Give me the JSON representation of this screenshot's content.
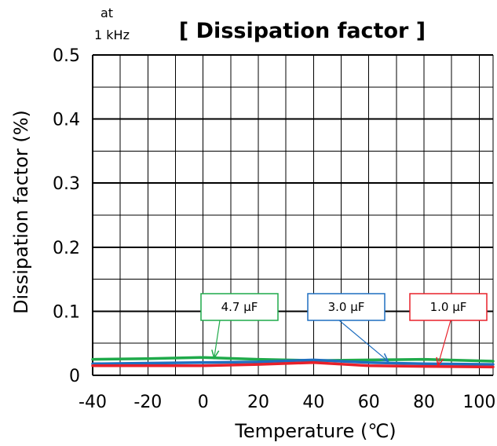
{
  "chart_data": {
    "type": "line",
    "title": "[ Dissipation factor ]",
    "condition": [
      "at",
      "1 kHz"
    ],
    "xlabel": "Temperature (℃)",
    "ylabel": "Dissipation factor (%)",
    "xlim": [
      -40,
      105
    ],
    "ylim": [
      0,
      0.5
    ],
    "xticks": [
      -40,
      -20,
      0,
      20,
      40,
      60,
      80,
      100
    ],
    "xtick_labels": [
      "-40",
      "-20",
      "0",
      "20",
      "40",
      "60",
      "80",
      "100"
    ],
    "yticks": [
      0,
      0.1,
      0.2,
      0.3,
      0.4,
      0.5
    ],
    "ytick_labels": [
      "0",
      "0.1",
      "0.2",
      "0.3",
      "0.4",
      "0.5"
    ],
    "grid": true,
    "series": [
      {
        "name": "4.7 μF",
        "color": "#1faa4a",
        "x": [
          -40,
          -20,
          0,
          20,
          40,
          60,
          80,
          105
        ],
        "y": [
          0.025,
          0.026,
          0.028,
          0.025,
          0.023,
          0.024,
          0.025,
          0.022
        ]
      },
      {
        "name": "3.0 μF",
        "color": "#1f6fc0",
        "x": [
          -40,
          -20,
          0,
          20,
          40,
          60,
          80,
          105
        ],
        "y": [
          0.018,
          0.019,
          0.02,
          0.021,
          0.024,
          0.02,
          0.018,
          0.017
        ]
      },
      {
        "name": "1.0 μF",
        "color": "#e8202a",
        "x": [
          -40,
          -20,
          0,
          20,
          40,
          60,
          80,
          105
        ],
        "y": [
          0.015,
          0.015,
          0.015,
          0.017,
          0.02,
          0.015,
          0.014,
          0.013
        ]
      }
    ],
    "annotations": [
      {
        "text": "4.7 μF",
        "color": "#1faa4a",
        "point_x": 4,
        "point_y": 0.027
      },
      {
        "text": "3.0 μF",
        "color": "#1f6fc0",
        "point_x": 67,
        "point_y": 0.022
      },
      {
        "text": "1.0 μF",
        "color": "#e8202a",
        "point_x": 85,
        "point_y": 0.015
      }
    ]
  }
}
